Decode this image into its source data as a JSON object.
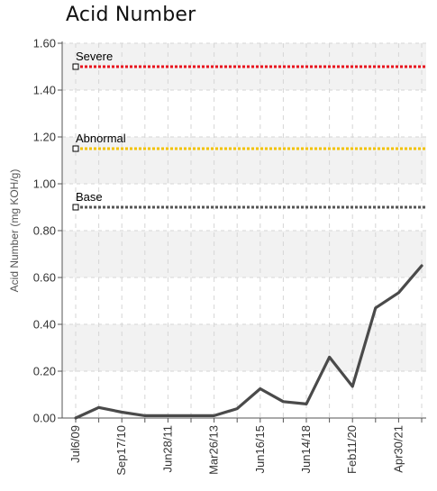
{
  "chart_data": {
    "type": "line",
    "title": "Acid Number",
    "ylabel": "Acid Number (mg KOH/g)",
    "ylim": [
      0,
      1.6
    ],
    "yticks": [
      "0.00",
      "0.20",
      "0.40",
      "0.60",
      "0.80",
      "1.00",
      "1.20",
      "1.40",
      "1.60"
    ],
    "x_labels": [
      {
        "index": 0,
        "text": "Jul6/09"
      },
      {
        "index": 2,
        "text": "Sep17/10"
      },
      {
        "index": 4,
        "text": "Jun28/11"
      },
      {
        "index": 6,
        "text": "Mar26/13"
      },
      {
        "index": 8,
        "text": "Jun16/15"
      },
      {
        "index": 10,
        "text": "Jun14/18"
      },
      {
        "index": 12,
        "text": "Feb11/20"
      },
      {
        "index": 14,
        "text": "Apr30/21"
      }
    ],
    "series": [
      {
        "color": "#4a4a4a",
        "values": [
          0.0,
          0.045,
          0.025,
          0.01,
          0.01,
          0.01,
          0.01,
          0.04,
          0.125,
          0.07,
          0.06,
          0.26,
          0.135,
          0.47,
          0.535,
          0.65
        ]
      }
    ],
    "reference_lines": [
      {
        "label": "Severe",
        "value": 1.5,
        "color": "#e8141e"
      },
      {
        "label": "Abnormal",
        "value": 1.15,
        "color": "#f2c200"
      },
      {
        "label": "Base",
        "value": 0.9,
        "color": "#555555"
      }
    ],
    "grid": true
  }
}
